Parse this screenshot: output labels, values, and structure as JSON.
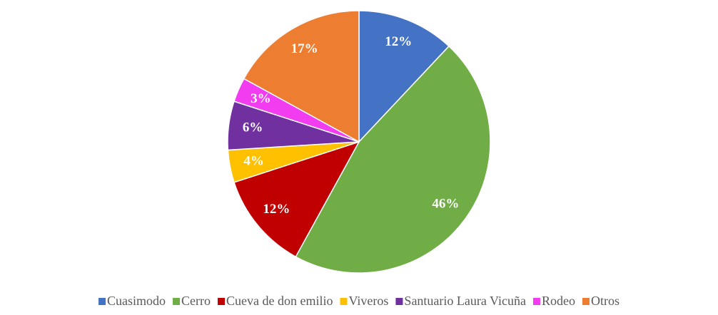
{
  "chart_data": {
    "type": "pie",
    "categories": [
      "Cuasimodo",
      "Cerro",
      "Cueva de don emilio",
      "Viveros",
      "Santuario Laura Vicuña",
      "Rodeo",
      "Otros"
    ],
    "values": [
      12,
      46,
      12,
      4,
      6,
      3,
      17
    ],
    "value_labels": [
      "12%",
      "46%",
      "12%",
      "4%",
      "6%",
      "3%",
      "17%"
    ],
    "colors": [
      "#4472c4",
      "#70ad47",
      "#c00000",
      "#ffc000",
      "#7030a0",
      "#f23cf0",
      "#ed7d31"
    ],
    "legend": "bottom"
  }
}
